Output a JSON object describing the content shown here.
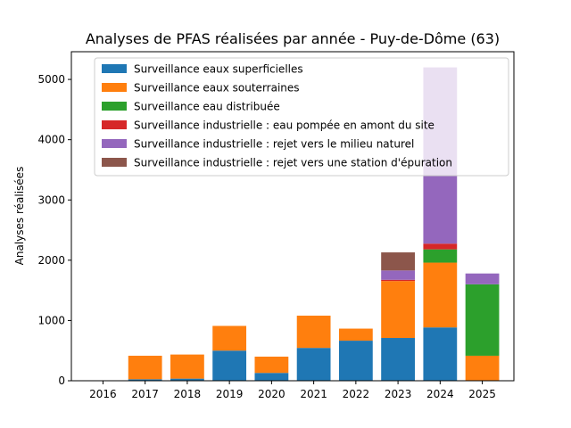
{
  "chart_data": {
    "type": "bar",
    "stacked": true,
    "title": "Analyses de PFAS réalisées par année - Puy-de-Dôme (63)",
    "xlabel": "",
    "ylabel": "Analyses réalisées",
    "categories": [
      "2016",
      "2017",
      "2018",
      "2019",
      "2020",
      "2021",
      "2022",
      "2023",
      "2024",
      "2025"
    ],
    "ylim": [
      0,
      5460
    ],
    "yticks": [
      0,
      1000,
      2000,
      3000,
      4000,
      5000
    ],
    "grid": false,
    "legend_position": "top-center",
    "series": [
      {
        "name": "Surveillance eaux superficielles",
        "color": "#1f77b4",
        "values": [
          5,
          25,
          35,
          500,
          130,
          545,
          665,
          710,
          885,
          0
        ]
      },
      {
        "name": "Surveillance eaux souterraines",
        "color": "#ff7f0e",
        "values": [
          0,
          390,
          400,
          410,
          270,
          535,
          200,
          945,
          1075,
          415
        ]
      },
      {
        "name": "Surveillance eau distribuée",
        "color": "#2ca02c",
        "values": [
          0,
          0,
          0,
          0,
          0,
          0,
          0,
          0,
          220,
          1185
        ]
      },
      {
        "name": "Surveillance industrielle : eau pompée en amont du site",
        "color": "#d62728",
        "values": [
          0,
          0,
          0,
          0,
          0,
          0,
          0,
          20,
          95,
          0
        ]
      },
      {
        "name": "Surveillance industrielle : rejet vers le milieu naturel",
        "color": "#9467bd",
        "values": [
          0,
          0,
          0,
          0,
          0,
          0,
          0,
          155,
          2925,
          180
        ]
      },
      {
        "name": "Surveillance industrielle : rejet vers une station d'épuration",
        "color": "#8c564b",
        "values": [
          0,
          0,
          0,
          0,
          0,
          0,
          0,
          300,
          0,
          0
        ]
      }
    ]
  }
}
